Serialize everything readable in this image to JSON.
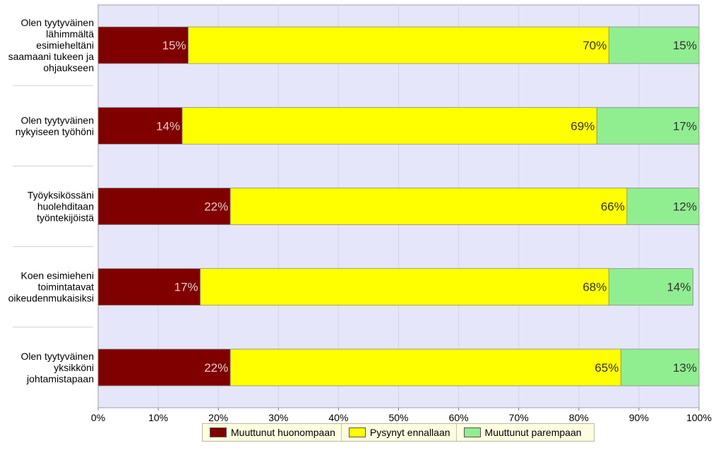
{
  "chart_data": {
    "type": "bar",
    "orientation": "horizontal",
    "stacked": true,
    "categories": [
      "Olen tyytyväinen lähimmältä esimieheltäni saamaani tukeen ja ohjaukseen",
      "Olen tyytyväinen nykyiseen työhöni",
      "Työyksikössäni huolehditaan työntekijöistä",
      "Koen esimieheni toimintatavat oikeudenmukaisiksi",
      "Olen tyytyväinen yksikköni johtamistapaan"
    ],
    "category_lines": [
      [
        "Olen tyytyväinen",
        "lähimmältä",
        "esimieheltäni",
        "saamaani tukeen ja",
        "ohjaukseen"
      ],
      [
        "Olen tyytyväinen",
        "nykyiseen työhöni"
      ],
      [
        "Työyksikössäni",
        "huolehditaan",
        "työntekijöistä"
      ],
      [
        "Koen esimieheni",
        "toimintatavat",
        "oikeudenmukaisiksi"
      ],
      [
        "Olen tyytyväinen",
        "yksikköni",
        "johtamistapaan"
      ]
    ],
    "series": [
      {
        "name": "Muuttunut huonompaan",
        "color": "#800000",
        "label_color": "#e6c8c8",
        "values": [
          15,
          14,
          22,
          17,
          22
        ],
        "labels": [
          "15%",
          "14%",
          "22%",
          "17%",
          "22%"
        ]
      },
      {
        "name": "Pysynyt ennallaan",
        "color": "#ffff00",
        "label_color": "#333333",
        "values": [
          70,
          69,
          66,
          68,
          65
        ],
        "labels": [
          "70%",
          "69%",
          "66%",
          "68%",
          "65%"
        ]
      },
      {
        "name": "Muuttunut parempaan",
        "color": "#90ee90",
        "label_color": "#333333",
        "values": [
          15,
          17,
          12,
          14,
          13
        ],
        "labels": [
          "15%",
          "17%",
          "12%",
          "14%",
          "13%"
        ]
      }
    ],
    "x_ticks": [
      "0%",
      "10%",
      "20%",
      "30%",
      "40%",
      "50%",
      "60%",
      "70%",
      "80%",
      "90%",
      "100%"
    ],
    "xlim": [
      0,
      100
    ],
    "grid": true,
    "plot_background": "#e6e6fa",
    "legend_position": "bottom"
  }
}
